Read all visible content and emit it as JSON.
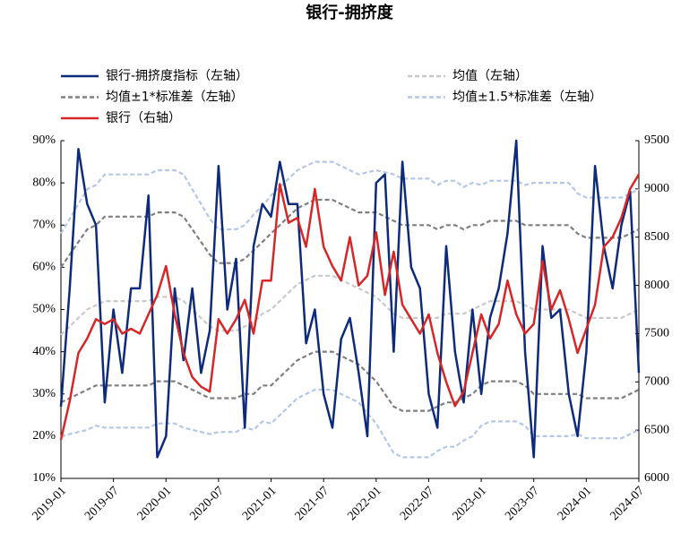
{
  "chart_data": {
    "type": "line",
    "title": "银行-拥挤度",
    "x": [
      "2019-01",
      "2019-02",
      "2019-03",
      "2019-04",
      "2019-05",
      "2019-06",
      "2019-07",
      "2019-08",
      "2019-09",
      "2019-10",
      "2019-11",
      "2019-12",
      "2020-01",
      "2020-02",
      "2020-03",
      "2020-04",
      "2020-05",
      "2020-06",
      "2020-07",
      "2020-08",
      "2020-09",
      "2020-10",
      "2020-11",
      "2020-12",
      "2021-01",
      "2021-02",
      "2021-03",
      "2021-04",
      "2021-05",
      "2021-06",
      "2021-07",
      "2021-08",
      "2021-09",
      "2021-10",
      "2021-11",
      "2021-12",
      "2022-01",
      "2022-02",
      "2022-03",
      "2022-04",
      "2022-05",
      "2022-06",
      "2022-07",
      "2022-08",
      "2022-09",
      "2022-10",
      "2022-11",
      "2022-12",
      "2023-01",
      "2023-02",
      "2023-03",
      "2023-04",
      "2023-05",
      "2023-06",
      "2023-07",
      "2023-08",
      "2023-09",
      "2023-10",
      "2023-11",
      "2023-12",
      "2024-01",
      "2024-02",
      "2024-03",
      "2024-04",
      "2024-05",
      "2024-06",
      "2024-07"
    ],
    "xticks": [
      "2019-01",
      "2019-07",
      "2020-01",
      "2020-07",
      "2021-01",
      "2021-07",
      "2022-01",
      "2022-07",
      "2023-01",
      "2023-07",
      "2024-01",
      "2024-07"
    ],
    "ylim": [
      10,
      90
    ],
    "yticks": [
      {
        "value": 10,
        "label": "10%"
      },
      {
        "value": 20,
        "label": "20%"
      },
      {
        "value": 30,
        "label": "30%"
      },
      {
        "value": 40,
        "label": "40%"
      },
      {
        "value": 50,
        "label": "50%"
      },
      {
        "value": 60,
        "label": "60%"
      },
      {
        "value": 70,
        "label": "70%"
      },
      {
        "value": 80,
        "label": "80%"
      },
      {
        "value": 90,
        "label": "90%"
      }
    ],
    "y2lim": [
      6000,
      9500
    ],
    "y2ticks": [
      6000,
      6500,
      7000,
      7500,
      8000,
      8500,
      9000,
      9500
    ],
    "grid": false,
    "legend": "top",
    "series": [
      {
        "name": "银行-拥挤度指标（左轴）",
        "color": "#0e2a7a",
        "style": "solid",
        "values": [
          27,
          55,
          88,
          75,
          70,
          28,
          50,
          35,
          55,
          55,
          77,
          15,
          20,
          55,
          38,
          55,
          35,
          45,
          84,
          50,
          62,
          22,
          65,
          75,
          72,
          85,
          75,
          75,
          42,
          50,
          30,
          22,
          43,
          48,
          35,
          20,
          80,
          82,
          40,
          85,
          60,
          55,
          30,
          22,
          65,
          40,
          28,
          50,
          30,
          48,
          55,
          68,
          90,
          40,
          15,
          65,
          48,
          50,
          30,
          20,
          40,
          84,
          65,
          55,
          70,
          78,
          35
        ]
      },
      {
        "name": "均值（左轴）",
        "color": "#c9c9c9",
        "style": "dashed",
        "values": [
          44,
          46,
          48,
          50,
          51,
          52,
          52,
          52,
          52,
          52,
          52,
          53,
          53,
          53,
          52,
          50,
          48,
          46,
          45,
          45,
          45,
          46,
          47,
          49,
          50,
          52,
          54,
          56,
          57,
          58,
          58,
          58,
          57,
          56,
          55,
          54,
          53,
          51,
          49,
          48,
          48,
          48,
          48,
          48,
          49,
          49,
          49,
          50,
          51,
          52,
          52,
          52,
          52,
          51,
          50,
          50,
          50,
          50,
          50,
          49,
          48,
          48,
          48,
          48,
          48,
          49,
          50
        ]
      },
      {
        "name": "均值±1*标准差（左轴）",
        "color": "#7f7f7f",
        "style": "dashed",
        "upper": [
          60,
          63,
          66,
          69,
          70,
          72,
          72,
          72,
          72,
          72,
          72,
          73,
          73,
          73,
          72,
          69,
          66,
          63,
          61,
          61,
          61,
          62,
          64,
          66,
          68,
          70,
          72,
          74,
          75,
          76,
          76,
          76,
          75,
          74,
          73,
          73,
          73,
          72,
          71,
          70,
          70,
          70,
          70,
          69,
          70,
          70,
          69,
          70,
          70,
          71,
          71,
          71,
          71,
          70,
          70,
          70,
          70,
          70,
          70,
          68,
          67,
          67,
          67,
          67,
          67,
          68,
          69
        ],
        "lower": [
          28,
          29,
          30,
          31,
          32,
          32,
          32,
          32,
          32,
          32,
          32,
          33,
          33,
          33,
          32,
          31,
          30,
          29,
          29,
          29,
          29,
          30,
          30,
          32,
          32,
          34,
          36,
          38,
          39,
          40,
          40,
          40,
          39,
          38,
          37,
          35,
          33,
          30,
          27,
          26,
          26,
          26,
          26,
          27,
          28,
          28,
          29,
          30,
          32,
          33,
          33,
          33,
          33,
          32,
          30,
          30,
          30,
          30,
          30,
          30,
          29,
          29,
          29,
          29,
          29,
          30,
          31
        ]
      },
      {
        "name": "均值±1.5*标准差（左轴）",
        "color": "#b4c7e7",
        "style": "dashed",
        "upper": [
          68,
          71.5,
          75,
          78.5,
          79.5,
          82,
          82,
          82,
          82,
          82,
          82,
          83,
          83,
          83,
          82,
          78.5,
          75,
          71.5,
          69,
          69,
          69,
          70,
          72.5,
          74.5,
          77,
          79,
          81,
          83,
          84,
          85,
          85,
          85,
          84,
          83,
          82,
          82.5,
          83,
          82.5,
          82,
          81,
          81,
          81,
          81,
          79.5,
          80.5,
          80.5,
          79,
          80,
          79.5,
          80.5,
          80.5,
          80.5,
          80.5,
          79.5,
          80,
          80,
          80,
          80,
          80,
          77.5,
          76.5,
          76.5,
          76.5,
          76.5,
          76.5,
          77.5,
          78.5
        ],
        "lower": [
          20,
          20.5,
          21,
          21.5,
          22.5,
          22,
          22,
          22,
          22,
          22,
          22,
          23,
          23,
          23,
          22,
          21.5,
          21,
          20.5,
          21,
          21,
          21,
          22,
          21.5,
          23.5,
          23,
          25,
          27,
          29,
          30,
          31,
          31,
          31,
          30,
          29,
          28,
          25.5,
          23,
          19.5,
          16,
          15,
          15,
          15,
          15,
          16.5,
          17.5,
          17.5,
          19,
          20,
          22.5,
          23.5,
          23.5,
          23.5,
          23.5,
          22.5,
          20,
          20,
          20,
          20,
          20,
          20.5,
          19.5,
          19.5,
          19.5,
          19.5,
          19.5,
          20.5,
          21.5
        ]
      },
      {
        "name": "银行（右轴）",
        "color": "#d62728",
        "style": "solid",
        "axis": "y2",
        "values": [
          6400,
          6800,
          7300,
          7450,
          7650,
          7600,
          7650,
          7500,
          7550,
          7500,
          7700,
          7900,
          8200,
          7700,
          7300,
          7050,
          6950,
          6900,
          7650,
          7500,
          7650,
          7850,
          7500,
          8050,
          8050,
          9050,
          8650,
          8700,
          8400,
          9000,
          8400,
          8200,
          8050,
          8500,
          8000,
          8100,
          8550,
          7900,
          8350,
          7800,
          7650,
          7500,
          7700,
          7300,
          7000,
          6750,
          6900,
          7300,
          7700,
          7450,
          7600,
          8050,
          7700,
          7500,
          7600,
          8250,
          7750,
          7950,
          7650,
          7300,
          7550,
          7800,
          8400,
          8500,
          8700,
          9000,
          9150
        ]
      }
    ]
  }
}
